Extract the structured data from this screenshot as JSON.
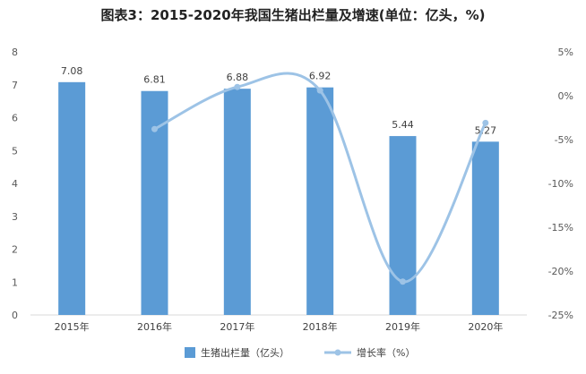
{
  "chart_data": {
    "type": "bar",
    "title": "图表3：2015-2020年我国生猪出栏量及增速(单位：亿头，%)",
    "categories": [
      "2015年",
      "2016年",
      "2017年",
      "2018年",
      "2019年",
      "2020年"
    ],
    "series": [
      {
        "name": "生猪出栏量（亿头）",
        "type": "bar",
        "axis": "left",
        "color": "#5b9bd5",
        "values": [
          7.08,
          6.81,
          6.88,
          6.92,
          5.44,
          5.27
        ],
        "data_labels": [
          "7.08",
          "6.81",
          "6.88",
          "6.92",
          "5.44",
          "5.27"
        ]
      },
      {
        "name": "增长率（%）",
        "type": "line",
        "axis": "right",
        "color": "#9dc3e6",
        "values": [
          null,
          -3.8,
          1.0,
          0.6,
          -21.2,
          -3.1
        ]
      }
    ],
    "y_left": {
      "ylim": [
        0,
        8
      ],
      "ticks": [
        "0",
        "1",
        "2",
        "3",
        "4",
        "5",
        "6",
        "7",
        "8"
      ]
    },
    "y_right": {
      "ylim": [
        -25,
        5
      ],
      "ticks": [
        "-25%",
        "-20%",
        "-15%",
        "-10%",
        "-5%",
        "0%",
        "5%"
      ],
      "tick_values": [
        -25,
        -20,
        -15,
        -10,
        -5,
        0,
        5
      ]
    },
    "grid": false,
    "legend_position": "bottom"
  }
}
